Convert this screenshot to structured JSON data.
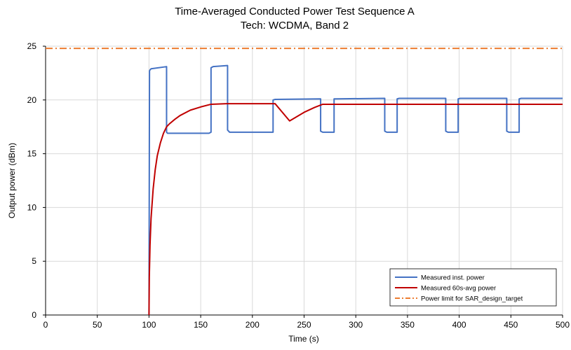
{
  "chart_data": {
    "type": "line",
    "title": "Time-Averaged Conducted Power Test Sequence A",
    "subtitle": "Tech: WCDMA, Band 2",
    "xlabel": "Time (s)",
    "ylabel": "Output power (dBm)",
    "xlim": [
      0,
      500
    ],
    "ylim": [
      0,
      25
    ],
    "x_ticks": [
      0,
      50,
      100,
      150,
      200,
      250,
      300,
      350,
      400,
      450,
      500
    ],
    "y_ticks": [
      0,
      5,
      10,
      15,
      20,
      25
    ],
    "x_tick_labels": [
      "0",
      "50",
      "100",
      "150",
      "200",
      "250",
      "300",
      "350",
      "400",
      "450",
      "500"
    ],
    "y_tick_labels": [
      "0",
      "5",
      "10",
      "15",
      "20",
      "25"
    ],
    "grid": true,
    "legend_position": "bottom-right",
    "series": [
      {
        "name": "Measured inst. power",
        "color": "#4472C4",
        "style": "solid",
        "x": [
          100,
          100.5,
          101,
          102,
          117,
          117,
          118,
          158,
          160,
          160,
          162,
          176,
          176,
          178,
          220,
          220,
          222,
          266,
          266,
          268,
          279,
          279,
          281,
          328,
          328,
          330,
          340,
          340,
          342,
          387,
          387,
          389,
          399,
          399,
          401,
          446,
          446,
          448,
          458,
          458,
          460,
          500
        ],
        "y": [
          0,
          22.7,
          22.8,
          22.9,
          23.1,
          17.0,
          16.9,
          16.9,
          17.0,
          23.0,
          23.1,
          23.2,
          17.2,
          17.0,
          17.0,
          20.0,
          20.05,
          20.1,
          17.1,
          17.0,
          17.0,
          20.1,
          20.1,
          20.15,
          17.1,
          17.0,
          17.0,
          20.1,
          20.15,
          20.15,
          17.1,
          17.0,
          17.0,
          20.1,
          20.15,
          20.15,
          17.1,
          17.0,
          17.0,
          20.1,
          20.15,
          20.15
        ]
      },
      {
        "name": "Measured 60s-avg power",
        "color": "#C00000",
        "style": "solid",
        "x": [
          100,
          100.3,
          101,
          102,
          104,
          106,
          108,
          111,
          114,
          117,
          120,
          125,
          130,
          140,
          150,
          160,
          175,
          190,
          210,
          222,
          236,
          250,
          260,
          268,
          280,
          300,
          350,
          400,
          450,
          500
        ],
        "y": [
          0,
          3.5,
          6.5,
          9.0,
          11.7,
          13.5,
          14.8,
          16.0,
          16.9,
          17.5,
          17.8,
          18.2,
          18.55,
          19.05,
          19.35,
          19.6,
          19.65,
          19.65,
          19.65,
          19.65,
          18.05,
          18.85,
          19.3,
          19.6,
          19.6,
          19.6,
          19.6,
          19.6,
          19.6,
          19.6
        ]
      },
      {
        "name": "Power limit for SAR_design_target",
        "color": "#ED7D31",
        "style": "dashdot",
        "x": [
          0,
          500
        ],
        "y": [
          24.8,
          24.8
        ]
      }
    ]
  }
}
